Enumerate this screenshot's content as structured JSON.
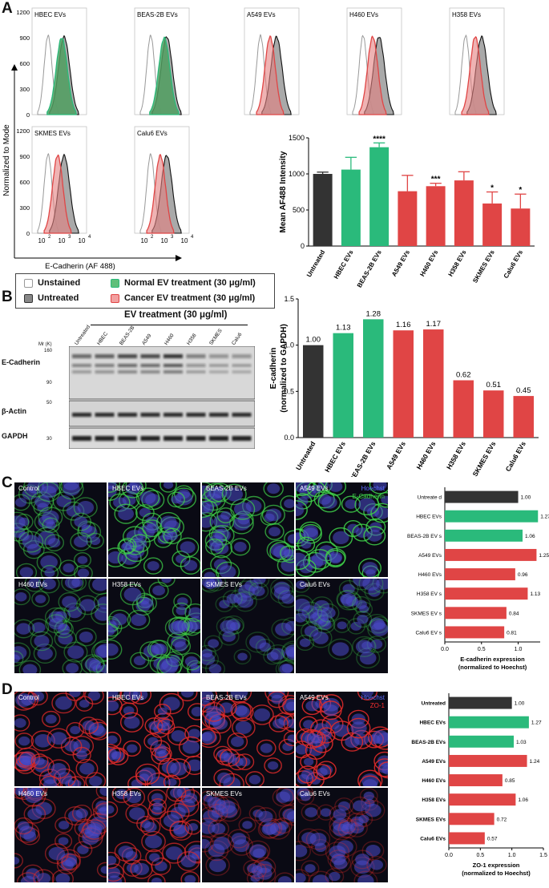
{
  "panels": {
    "A": "A",
    "B": "B",
    "C": "C",
    "D": "D"
  },
  "colors": {
    "untreated": "#333333",
    "normal": "#2aba7b",
    "cancer": "#e04545",
    "normal_fill": "#3aa05a",
    "cancer_fill": "#e06b6b",
    "unstained": "#999999",
    "gray_fill": "#8a8a8a"
  },
  "panelA": {
    "histograms": {
      "row1": [
        "HBEC EVs",
        "BEAS-2B EVs",
        "A549 EVs",
        "H460 EVs",
        "H358 EVs"
      ],
      "row2": [
        "SKMES EVs",
        "Calu6 EVs"
      ],
      "types": [
        "normal",
        "normal",
        "cancer",
        "cancer",
        "cancer",
        "cancer",
        "cancer"
      ],
      "y_ticks": [
        "0",
        "300",
        "600",
        "900",
        "1200"
      ],
      "x_ticks": [
        {
          "base": "10",
          "exp": "2"
        },
        {
          "base": "10",
          "exp": "3"
        },
        {
          "base": "10",
          "exp": "4"
        }
      ],
      "ylabel": "Normalized to Mode",
      "xlabel": "E-Cadherin (AF 488)"
    },
    "legend": {
      "unstained": "Unstained",
      "untreated": "Untreated",
      "normal": "Normal EV treatment (30 μg/ml)",
      "cancer": "Cancer EV treatment (30 μg/ml)"
    }
  },
  "panelB": {
    "blot": {
      "header": "EV treatment (30 μg/ml)",
      "mw_label": "Mr (K)",
      "lanes": [
        "Untreated",
        "HBEC",
        "BEAS-2B",
        "A549",
        "H460",
        "H358",
        "SKMES",
        "Calu6"
      ],
      "rows": [
        {
          "label": "E-Cadherin",
          "markers": [
            "160",
            "90"
          ]
        },
        {
          "label": "β-Actin",
          "markers": [
            "50"
          ]
        },
        {
          "label": "GAPDH",
          "markers": [
            "30"
          ]
        }
      ]
    }
  },
  "panelC": {
    "images": [
      "Control",
      "HBEC EVs",
      "BEAS-2B EVs",
      "A549 EVs",
      "H460 EVs",
      "H358 EVs",
      "SKMES EVs",
      "Calu6 EVs"
    ],
    "stain1": "Hoechst",
    "stain2": "E-Cadherin"
  },
  "panelD": {
    "images": [
      "Control",
      "HBEC EVs",
      "BEAS-2B EVs",
      "A549 EVs",
      "H460 EVs",
      "H358 EVs",
      "SKMES EVs",
      "Calu6 EVs"
    ],
    "stain1": "Hoechst",
    "stain2": "ZO-1"
  },
  "chart_data": [
    {
      "type": "bar",
      "id": "A",
      "categories": [
        "Untreated",
        "HBEC EVs",
        "BEAS-2B EVs",
        "A549 EVs",
        "H460 EVs",
        "H358 EVs",
        "SKMES EVs",
        "Calu6 EVs"
      ],
      "values": [
        1000,
        1060,
        1370,
        760,
        830,
        910,
        590,
        520
      ],
      "errors": [
        25,
        170,
        60,
        220,
        40,
        120,
        160,
        200
      ],
      "significance": [
        "",
        "",
        "****",
        "",
        "***",
        "",
        "*",
        "*"
      ],
      "group": [
        "untreated",
        "normal",
        "normal",
        "cancer",
        "cancer",
        "cancer",
        "cancer",
        "cancer"
      ],
      "ylabel": "Mean AF488 Intensity",
      "ylim": [
        0,
        1500
      ],
      "yticks": [
        0,
        500,
        1000,
        1500
      ]
    },
    {
      "type": "bar",
      "id": "B",
      "categories": [
        "Untreated",
        "HBEC EVs",
        "BEAS-2B EVs",
        "A549 EVs",
        "H460 EVs",
        "H358 EVs",
        "SKMES EVs",
        "Calu6 EVs"
      ],
      "values": [
        1.0,
        1.13,
        1.28,
        1.16,
        1.17,
        0.62,
        0.51,
        0.45
      ],
      "labels": [
        "1.00",
        "1.13",
        "1.28",
        "1.16",
        "1.17",
        "0.62",
        "0.51",
        "0.45"
      ],
      "group": [
        "untreated",
        "normal",
        "normal",
        "cancer",
        "cancer",
        "cancer",
        "cancer",
        "cancer"
      ],
      "ylabel": [
        "E-cadherin",
        "(normalized to GAPDH)"
      ],
      "ylim": [
        0,
        1.5
      ],
      "yticks": [
        "0.0",
        "0.5",
        "1.0",
        "1.5"
      ]
    },
    {
      "type": "bar",
      "id": "C",
      "orientation": "horizontal",
      "categories": [
        "Untreate d",
        "HBEC EVs",
        "BEAS-2B EV s",
        "A549 EVs",
        "H460 EVs",
        "H358 EV s",
        "SKMES EV s",
        "Calu6 EV s"
      ],
      "values": [
        1.0,
        1.27,
        1.06,
        1.25,
        0.96,
        1.13,
        0.84,
        0.81
      ],
      "labels": [
        "1.00",
        "1.27",
        "1.06",
        "1.25",
        "0.96",
        "1.13",
        "0.84",
        "0.81"
      ],
      "group": [
        "untreated",
        "normal",
        "normal",
        "cancer",
        "cancer",
        "cancer",
        "cancer",
        "cancer"
      ],
      "xlabel": [
        "E-cadherin expression",
        "(normalized to Hoechst)"
      ],
      "xlim": [
        0,
        1.3
      ],
      "xticks": [
        "0.0",
        "0.5",
        "1.0"
      ]
    },
    {
      "type": "bar",
      "id": "D",
      "orientation": "horizontal",
      "categories": [
        "Untreated",
        "HBEC EVs",
        "BEAS-2B EVs",
        "A549 EVs",
        "H460 EVs",
        "H358 EVs",
        "SKMES EVs",
        "Calu6 EVs"
      ],
      "values": [
        1.0,
        1.27,
        1.03,
        1.24,
        0.85,
        1.06,
        0.72,
        0.57
      ],
      "labels": [
        "1.00",
        "1.27",
        "1.03",
        "1.24",
        "0.85",
        "1.06",
        "0.72",
        "0.57"
      ],
      "group": [
        "untreated",
        "normal",
        "normal",
        "cancer",
        "cancer",
        "cancer",
        "cancer",
        "cancer"
      ],
      "xlabel": [
        "ZO-1 expression",
        "(normalized to Hoechst)"
      ],
      "xlim": [
        0,
        1.5
      ],
      "xticks": [
        "0.0",
        "0.5",
        "1.0",
        "1.5"
      ]
    }
  ]
}
